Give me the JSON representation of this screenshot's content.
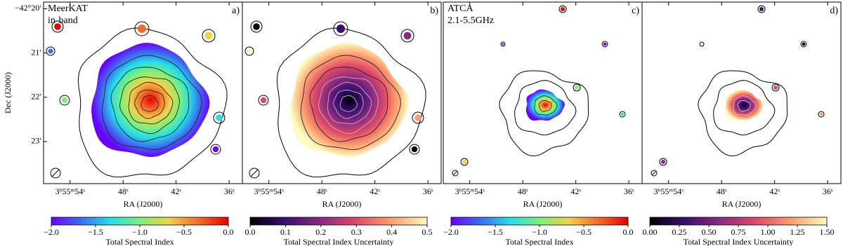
{
  "chart_data": [
    {
      "type": "image",
      "panel_label": "a)",
      "annotation": [
        "MeerKAT",
        "in-band"
      ],
      "xlabel": "RA (J2000)",
      "ylabel": "Dec (J2000)",
      "xlim": [
        57,
        34.5
      ],
      "xticks": [
        {
          "value": 54,
          "label": "3ʰ55ᵐ54ˢ"
        },
        {
          "value": 48,
          "label": "48ˢ"
        },
        {
          "value": 42,
          "label": "42ˢ"
        },
        {
          "value": 36,
          "label": "36ˢ"
        }
      ],
      "ylim": [
        19.85,
        23.95
      ],
      "yticks": [
        {
          "value": 20,
          "label": "−42°20′"
        },
        {
          "value": 21,
          "label": "21′"
        },
        {
          "value": 22,
          "label": "22′"
        },
        {
          "value": 23,
          "label": "23′"
        }
      ],
      "colorbar": {
        "label": "Total Spectral Index",
        "lim": [
          -2,
          0
        ],
        "colors": [
          "#6a00ff",
          "#3d6cf0",
          "#22e0e8",
          "#7df07a",
          "#f0d34a",
          "#f56a2a",
          "#e60000"
        ],
        "ticks": [
          {
            "value": -2,
            "label": "−2.0"
          },
          {
            "value": -1.5,
            "label": "−1.5"
          },
          {
            "value": -1,
            "label": "−1.0"
          },
          {
            "value": -0.5,
            "label": "−0.5"
          },
          {
            "value": 0,
            "label": "0.0"
          }
        ]
      }
    },
    {
      "type": "image",
      "panel_label": "b)",
      "xlabel": "RA (J2000)",
      "xlim": [
        57,
        34.5
      ],
      "xticks": [
        {
          "value": 54,
          "label": "3ʰ55ᵐ54ˢ"
        },
        {
          "value": 48,
          "label": "48ˢ"
        },
        {
          "value": 42,
          "label": "42ˢ"
        },
        {
          "value": 36,
          "label": "36ˢ"
        }
      ],
      "colorbar": {
        "label": "Total Spectral Index Uncertainty",
        "lim": [
          0,
          0.5
        ],
        "colors": [
          "#000004",
          "#3b0f70",
          "#8c2981",
          "#de4968",
          "#fe9f6d",
          "#fcfdbf"
        ],
        "ticks": [
          {
            "value": 0,
            "label": "0.0"
          },
          0.1,
          0.2,
          0.3,
          0.4,
          0.5
        ]
      }
    },
    {
      "type": "image",
      "panel_label": "c)",
      "annotation": [
        "ATCA",
        "2.1-5.5GHz"
      ],
      "xlabel": "RA (J2000)",
      "xlim": [
        57,
        34.5
      ],
      "xticks": [
        {
          "value": 54,
          "label": "3ʰ55ᵐ54ˢ"
        },
        {
          "value": 48,
          "label": "48ˢ"
        },
        {
          "value": 42,
          "label": "42ˢ"
        },
        {
          "value": 36,
          "label": "36ˢ"
        }
      ],
      "colorbar": {
        "label": "Total Spectral Index",
        "lim": [
          -2,
          0
        ],
        "colors": [
          "#6a00ff",
          "#3d6cf0",
          "#22e0e8",
          "#7df07a",
          "#f0d34a",
          "#f56a2a",
          "#e60000"
        ],
        "ticks": [
          {
            "value": -2,
            "label": "−2.0"
          },
          {
            "value": -1.5,
            "label": "−1.5"
          },
          {
            "value": -1,
            "label": "−1.0"
          },
          {
            "value": -0.5,
            "label": "−0.5"
          },
          {
            "value": 0,
            "label": "0.0"
          }
        ]
      }
    },
    {
      "type": "image",
      "panel_label": "d)",
      "xlabel": "RA (J2000)",
      "xlim": [
        57,
        34.5
      ],
      "xticks": [
        {
          "value": 54,
          "label": "3ʰ55ᵐ54ˢ"
        },
        {
          "value": 48,
          "label": "48ˢ"
        },
        {
          "value": 42,
          "label": "42ˢ"
        },
        {
          "value": 36,
          "label": "36ˢ"
        }
      ],
      "colorbar": {
        "label": "Total Spectral Index Uncertainty",
        "lim": [
          0,
          1.5
        ],
        "colors": [
          "#000004",
          "#3b0f70",
          "#8c2981",
          "#de4968",
          "#fe9f6d",
          "#fcfdbf"
        ],
        "ticks": [
          {
            "value": 0,
            "label": "0.00"
          },
          0.25,
          {
            "value": 0.5,
            "label": "0.50"
          },
          0.75,
          {
            "value": 1,
            "label": "1.00"
          },
          1.25,
          {
            "value": 1.5,
            "label": "1.50"
          }
        ]
      }
    }
  ]
}
